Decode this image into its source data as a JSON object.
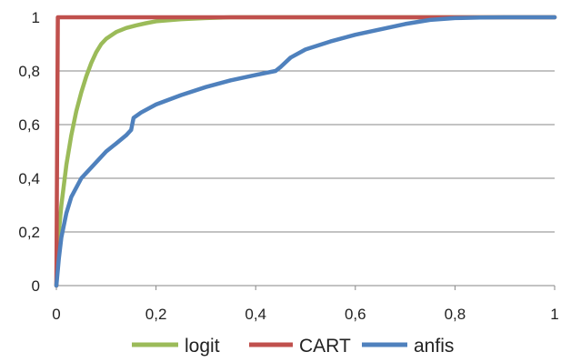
{
  "chart_data": {
    "type": "line",
    "title": "",
    "xlabel": "",
    "ylabel": "",
    "xlim": [
      0,
      1
    ],
    "ylim": [
      0,
      1
    ],
    "grid": "horizontal",
    "legend_position": "bottom",
    "x_ticks": [
      {
        "value": 0,
        "label": "0"
      },
      {
        "value": 0.2,
        "label": "0,2"
      },
      {
        "value": 0.4,
        "label": "0,4"
      },
      {
        "value": 0.6,
        "label": "0,6"
      },
      {
        "value": 0.8,
        "label": "0,8"
      },
      {
        "value": 1,
        "label": "1"
      }
    ],
    "y_ticks": [
      {
        "value": 0,
        "label": "0"
      },
      {
        "value": 0.2,
        "label": "0,2"
      },
      {
        "value": 0.4,
        "label": "0,4"
      },
      {
        "value": 0.6,
        "label": "0,6"
      },
      {
        "value": 0.8,
        "label": "0,8"
      },
      {
        "value": 1,
        "label": "1"
      }
    ],
    "series": [
      {
        "name": "logit",
        "color": "#9BBB59",
        "x": [
          0,
          0.005,
          0.01,
          0.02,
          0.03,
          0.04,
          0.05,
          0.06,
          0.07,
          0.08,
          0.09,
          0.1,
          0.12,
          0.14,
          0.16,
          0.18,
          0.2,
          0.25,
          0.3,
          0.35,
          1
        ],
        "y": [
          0,
          0.2,
          0.3,
          0.45,
          0.56,
          0.65,
          0.72,
          0.78,
          0.83,
          0.87,
          0.9,
          0.92,
          0.945,
          0.96,
          0.97,
          0.978,
          0.985,
          0.993,
          0.997,
          1,
          1
        ]
      },
      {
        "name": "CART",
        "color": "#C0504D",
        "x": [
          0,
          0.003,
          1
        ],
        "y": [
          0,
          1,
          1
        ]
      },
      {
        "name": "anfis",
        "color": "#4F81BD",
        "x": [
          0,
          0.005,
          0.01,
          0.02,
          0.03,
          0.05,
          0.07,
          0.1,
          0.12,
          0.14,
          0.15,
          0.155,
          0.17,
          0.2,
          0.25,
          0.3,
          0.35,
          0.4,
          0.44,
          0.45,
          0.47,
          0.5,
          0.55,
          0.6,
          0.65,
          0.7,
          0.75,
          0.8,
          0.85,
          0.9,
          1
        ],
        "y": [
          0,
          0.1,
          0.18,
          0.27,
          0.33,
          0.4,
          0.44,
          0.5,
          0.53,
          0.56,
          0.58,
          0.625,
          0.645,
          0.675,
          0.71,
          0.74,
          0.765,
          0.785,
          0.8,
          0.815,
          0.85,
          0.88,
          0.91,
          0.935,
          0.955,
          0.975,
          0.99,
          0.997,
          0.999,
          1,
          1
        ]
      }
    ]
  }
}
